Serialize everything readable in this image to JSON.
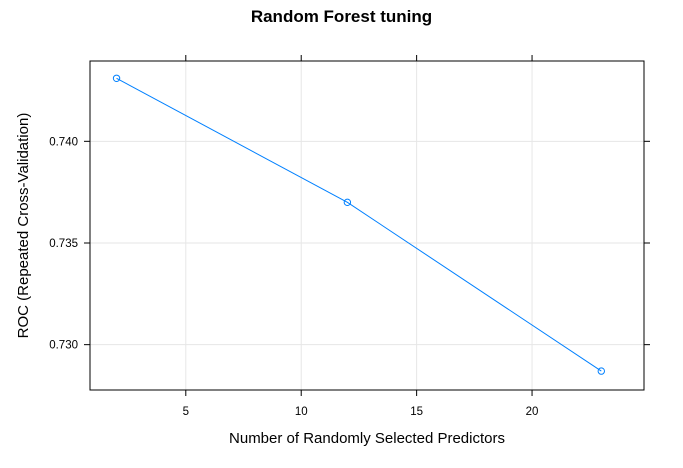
{
  "chart_data": {
    "type": "line",
    "title": "Random Forest tuning",
    "xlabel": "Number of Randomly Selected Predictors",
    "ylabel": "ROC (Repeated Cross-Validation)",
    "x": [
      2,
      12,
      23
    ],
    "series": [
      {
        "values": [
          0.7431,
          0.737,
          0.7287
        ]
      }
    ],
    "xlim": [
      0.85,
      24.85
    ],
    "ylim": [
      0.72777,
      0.74395
    ],
    "xticks": [
      5,
      10,
      15,
      20
    ],
    "yticks": [
      0.73,
      0.735,
      0.74
    ],
    "xtick_labels": [
      "5",
      "10",
      "15",
      "20"
    ],
    "ytick_labels": [
      "0.730",
      "0.735",
      "0.740"
    ],
    "grid": true,
    "series_color": "#0080ff"
  }
}
